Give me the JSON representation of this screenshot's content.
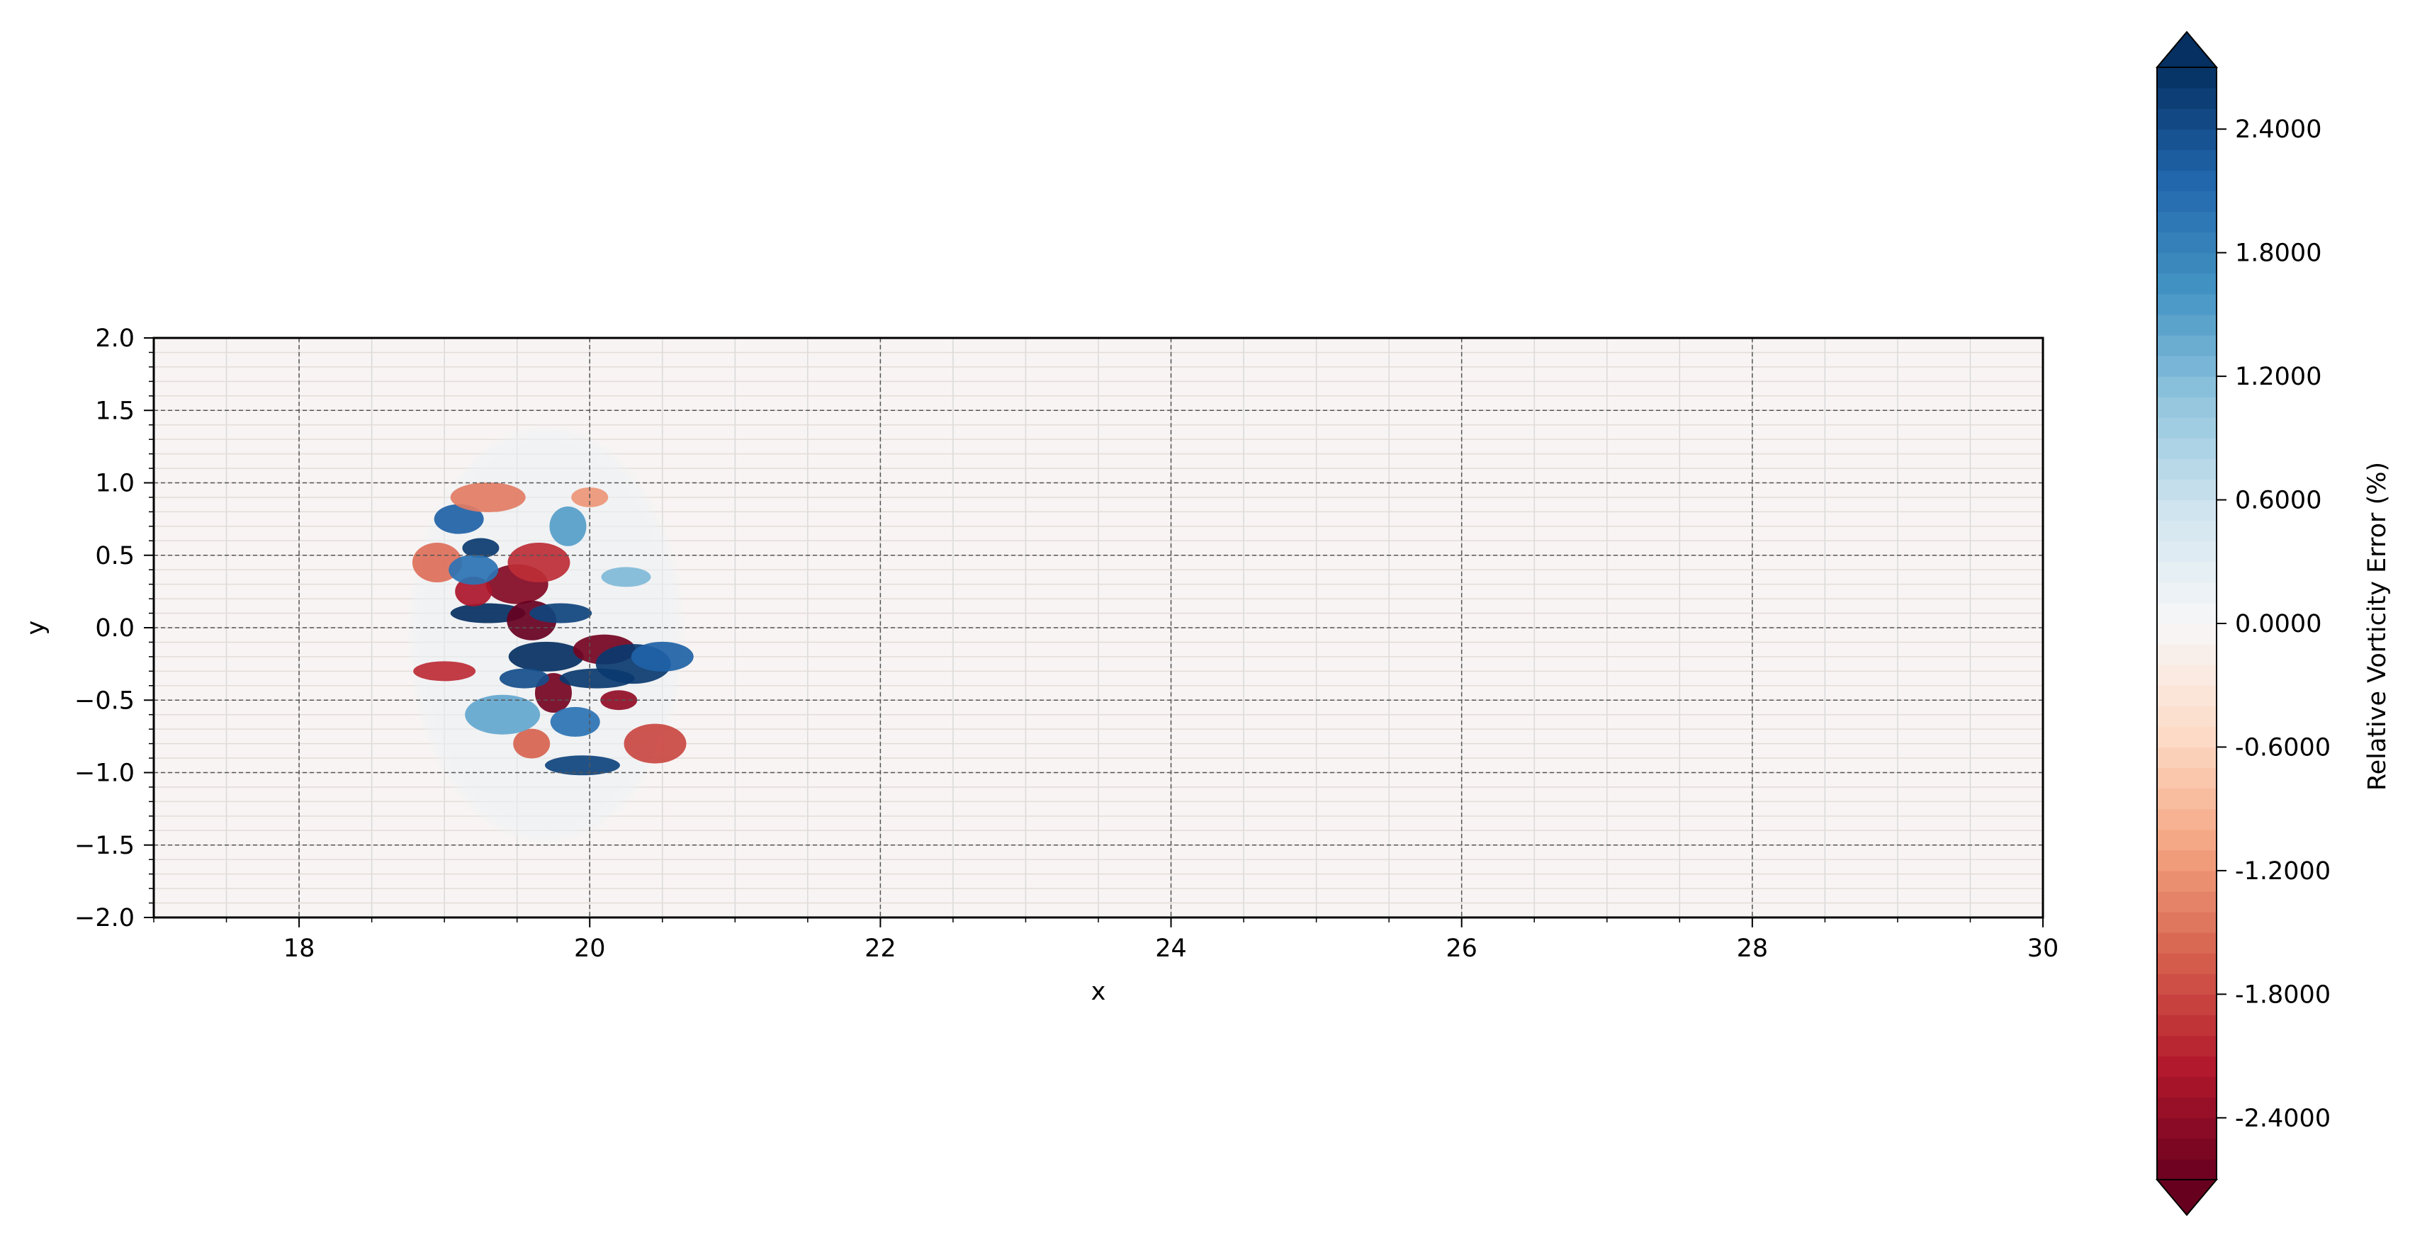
{
  "chart_data": {
    "type": "heatmap",
    "title": "",
    "xlabel": "x",
    "ylabel": "y",
    "xlim": [
      17,
      30
    ],
    "ylim": [
      -2.0,
      2.0
    ],
    "x_ticks": [
      18,
      20,
      22,
      24,
      26,
      28,
      30
    ],
    "x_tick_labels": [
      "18",
      "20",
      "22",
      "24",
      "26",
      "28",
      "30"
    ],
    "y_ticks": [
      -2.0,
      -1.5,
      -1.0,
      -0.5,
      0.0,
      0.5,
      1.0,
      1.5,
      2.0
    ],
    "y_tick_labels": [
      "−2.0",
      "−1.5",
      "−1.0",
      "−0.5",
      "0.0",
      "0.5",
      "1.0",
      "1.5",
      "2.0"
    ],
    "grid": true,
    "background_value": -0.05,
    "colorbar": {
      "label": "Relative Vorticity Error (%)",
      "range": [
        -2.7,
        2.7
      ],
      "levels": 54,
      "extend": "both",
      "cmap": "RdBu",
      "ticks": [
        2.4,
        1.8,
        1.2,
        0.6,
        0.0,
        -0.6,
        -1.2,
        -1.8,
        -2.4
      ],
      "tick_labels": [
        "2.4000",
        "1.8000",
        "1.2000",
        "0.6000",
        "0.0000",
        "-0.6000",
        "-1.2000",
        "-1.8000",
        "-2.4000"
      ]
    },
    "error_patches": [
      {
        "x": 19.25,
        "y": 0.55,
        "value": 2.6
      },
      {
        "x": 19.1,
        "y": 0.75,
        "value": 2.2
      },
      {
        "x": 19.5,
        "y": 0.3,
        "value": -2.5
      },
      {
        "x": 19.3,
        "y": 0.1,
        "value": 2.7
      },
      {
        "x": 19.2,
        "y": 0.25,
        "value": -2.2
      },
      {
        "x": 19.6,
        "y": 0.05,
        "value": -2.7
      },
      {
        "x": 19.8,
        "y": 0.1,
        "value": 2.5
      },
      {
        "x": 19.7,
        "y": -0.2,
        "value": 2.7
      },
      {
        "x": 19.75,
        "y": -0.45,
        "value": -2.6
      },
      {
        "x": 19.55,
        "y": -0.35,
        "value": 2.4
      },
      {
        "x": 20.1,
        "y": -0.15,
        "value": -2.6
      },
      {
        "x": 20.3,
        "y": -0.25,
        "value": 2.6
      },
      {
        "x": 20.2,
        "y": -0.5,
        "value": -2.4
      },
      {
        "x": 19.9,
        "y": -0.65,
        "value": 2.0
      },
      {
        "x": 20.45,
        "y": -0.8,
        "value": -1.8
      },
      {
        "x": 19.95,
        "y": -0.95,
        "value": 2.5
      },
      {
        "x": 19.6,
        "y": -0.8,
        "value": -1.6
      },
      {
        "x": 18.95,
        "y": 0.45,
        "value": -1.5
      },
      {
        "x": 19.0,
        "y": -0.3,
        "value": -2.0
      },
      {
        "x": 19.3,
        "y": 0.9,
        "value": -1.4
      },
      {
        "x": 19.85,
        "y": 0.7,
        "value": 1.5
      },
      {
        "x": 20.25,
        "y": 0.35,
        "value": 1.2
      },
      {
        "x": 20.5,
        "y": -0.2,
        "value": 2.2
      },
      {
        "x": 19.4,
        "y": -0.6,
        "value": 1.4
      },
      {
        "x": 20.0,
        "y": 0.9,
        "value": -1.2
      },
      {
        "x": 19.2,
        "y": 0.4,
        "value": 2.0
      },
      {
        "x": 19.65,
        "y": 0.45,
        "value": -2.0
      },
      {
        "x": 20.05,
        "y": -0.35,
        "value": 2.6
      }
    ]
  }
}
